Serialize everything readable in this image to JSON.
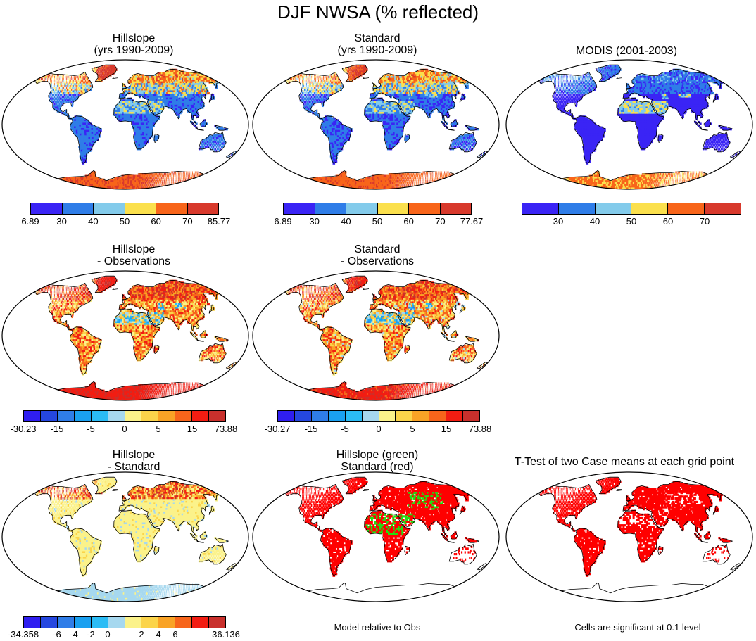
{
  "figure_title": "DJF NWSA (% reflected)",
  "panels": [
    {
      "id": "hill",
      "title1": "Hillslope",
      "title2": "(yrs 1990-2009)",
      "scheme": "abs",
      "bias": 0.0
    },
    {
      "id": "std",
      "title1": "Standard",
      "title2": "(yrs 1990-2009)",
      "scheme": "abs",
      "bias": -0.02
    },
    {
      "id": "modis",
      "title1": "MODIS (2001-2003)",
      "title2": "",
      "scheme": "modis",
      "bias": 0.0
    },
    {
      "id": "hill_obs",
      "title1": "Hillslope",
      "title2": "- Observations",
      "scheme": "diff",
      "bias": 0.0
    },
    {
      "id": "std_obs",
      "title1": "Standard",
      "title2": "- Observations",
      "scheme": "diff",
      "bias": -0.02
    },
    {
      "id": "hill_std",
      "title1": "Hillslope",
      "title2": "- Standard",
      "scheme": "hs",
      "bias": 0.0
    },
    {
      "id": "comp",
      "title1": "Hillslope (green)",
      "title2": "Standard (red)",
      "scheme": "comp",
      "bias": 0.0
    },
    {
      "id": "ttest",
      "title1": "T-Test of two Case means at each grid point",
      "title2": "",
      "scheme": "ttest",
      "bias": 0.0
    }
  ],
  "colorbars": {
    "abs1": {
      "colors": [
        "#3a24f5",
        "#2f7de8",
        "#83cbeb",
        "#fbe04d",
        "#f8651a",
        "#d8392c"
      ],
      "labels": [
        "6.89",
        "30",
        "40",
        "50",
        "60",
        "70",
        "85.77"
      ]
    },
    "abs2": {
      "colors": [
        "#3a24f5",
        "#2f7de8",
        "#83cbeb",
        "#fbe04d",
        "#f8651a",
        "#d8392c"
      ],
      "labels": [
        "6.89",
        "30",
        "40",
        "50",
        "60",
        "70",
        "77.67"
      ]
    },
    "modis": {
      "colors": [
        "#3a24f5",
        "#2f7de8",
        "#83cbeb",
        "#fbe04d",
        "#f8651a",
        "#d8392c"
      ],
      "labels": [
        "30",
        "40",
        "50",
        "60",
        "70"
      ]
    },
    "diff1": {
      "colors": [
        "#2f1ef0",
        "#2547e0",
        "#2f7de8",
        "#1aa0f0",
        "#2bbcf5",
        "#a6d8ef",
        "#fbf28a",
        "#fbd44a",
        "#f9a326",
        "#f7651b",
        "#f21d12",
        "#c9302c"
      ],
      "labels": [
        "-30.23",
        "-15",
        "-5",
        "0",
        "5",
        "15",
        "73.88"
      ]
    },
    "diff2": {
      "colors": [
        "#2f1ef0",
        "#2547e0",
        "#2f7de8",
        "#1aa0f0",
        "#2bbcf5",
        "#a6d8ef",
        "#fbf28a",
        "#fbd44a",
        "#f9a326",
        "#f7651b",
        "#f21d12",
        "#c9302c"
      ],
      "labels": [
        "-30.27",
        "-15",
        "-5",
        "0",
        "5",
        "15",
        "73.88"
      ]
    },
    "hs": {
      "colors": [
        "#2f1ef0",
        "#2547e0",
        "#2f7de8",
        "#1aa0f0",
        "#2bbcf5",
        "#a6d8ef",
        "#fbf28a",
        "#fbd44a",
        "#f9a326",
        "#f7651b",
        "#f21d12",
        "#c9302c"
      ],
      "labels": [
        "-34.358",
        "-6",
        "-4",
        "-2",
        "0",
        "2",
        "4",
        "6",
        "36.136"
      ]
    }
  },
  "notes": {
    "comp": "Model relative to Obs",
    "ttest": "Cells are significant at 0.1 level"
  }
}
